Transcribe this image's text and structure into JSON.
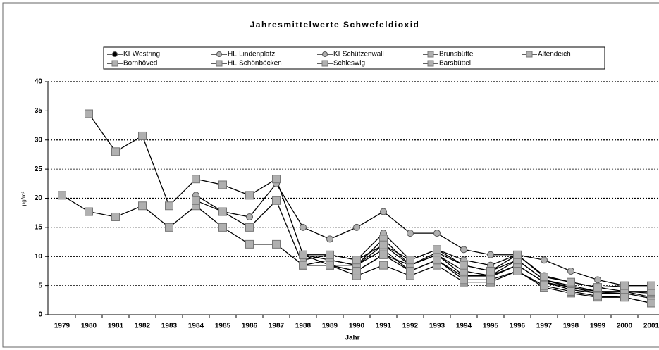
{
  "chart_data": {
    "type": "line",
    "title": "Jahresmittelwerte Schwefeldioxid",
    "x_label": "Jahr",
    "y_label": "µg/m³",
    "categories": [
      "1979",
      "1980",
      "1981",
      "1982",
      "1983",
      "1984",
      "1985",
      "1986",
      "1987",
      "1988",
      "1989",
      "1990",
      "1991",
      "1992",
      "1993",
      "1994",
      "1995",
      "1996",
      "1997",
      "1998",
      "1999",
      "2000",
      "2001"
    ],
    "ylim": [
      0,
      40
    ],
    "yticks": [
      0,
      5,
      10,
      15,
      20,
      25,
      30,
      35,
      40
    ],
    "grid": true,
    "legend": "top",
    "series": [
      {
        "name": "KI-Westring",
        "color": "#000000",
        "marker": "circle",
        "values": [
          null,
          null,
          null,
          null,
          null,
          null,
          null,
          null,
          null,
          10.3,
          9.4,
          8.5,
          12,
          8.5,
          10.7,
          8.5,
          7.5,
          9.4,
          6,
          5,
          4,
          4,
          4
        ]
      },
      {
        "name": "HL-Lindenplatz",
        "color": "#b0b0b0",
        "marker": "circle",
        "values": [
          null,
          null,
          null,
          null,
          null,
          20.5,
          17.7,
          16.8,
          22.5,
          15,
          13,
          15,
          17.7,
          14,
          14,
          11.2,
          10.3,
          10.3,
          9.4,
          7.5,
          6,
          5,
          5
        ]
      },
      {
        "name": "KI-Schützenwall",
        "color": "#b0b0b0",
        "marker": "circle",
        "values": [
          null,
          null,
          null,
          null,
          null,
          null,
          null,
          null,
          null,
          9.4,
          10.3,
          9.4,
          14,
          9.4,
          11.2,
          9.4,
          8.5,
          10.3,
          6.7,
          5.6,
          4.7,
          4,
          3
        ]
      },
      {
        "name": "Brunsbüttel",
        "color": "#b0b0b0",
        "marker": "square",
        "values": [
          20.5,
          17.7,
          16.8,
          18.7,
          15,
          18.7,
          15,
          12.1,
          12.1,
          8.5,
          8.5,
          6.7,
          8.5,
          6.7,
          8.5,
          5.6,
          5.6,
          7.5,
          4.7,
          3.7,
          3,
          3,
          2
        ]
      },
      {
        "name": "Altendeich",
        "color": "#b0b0b0",
        "marker": "square",
        "values": [
          null,
          34.5,
          28,
          30.7,
          18.7,
          23.3,
          22.3,
          20.5,
          23.3,
          10.3,
          8.5,
          7.5,
          10.3,
          8.5,
          10.3,
          6.7,
          6.7,
          8.5,
          5.6,
          4.7,
          3.7,
          3.7,
          2.8
        ]
      },
      {
        "name": "Bornhöved",
        "color": "#b0b0b0",
        "marker": "square",
        "values": [
          null,
          null,
          null,
          null,
          null,
          19.6,
          17.7,
          15,
          19.6,
          8.5,
          9.4,
          8.5,
          11.2,
          7.5,
          9.4,
          6.5,
          6.5,
          8.5,
          5.6,
          4.3,
          3.7,
          4,
          3.7
        ]
      },
      {
        "name": "HL-Schönböcken",
        "color": "#b0b0b0",
        "marker": "square",
        "values": [
          null,
          null,
          null,
          null,
          null,
          null,
          null,
          null,
          null,
          8.5,
          8.5,
          8.5,
          13,
          8.5,
          10.3,
          7.5,
          6.7,
          9.4,
          6,
          4.7,
          4,
          4,
          4
        ]
      },
      {
        "name": "Schleswig",
        "color": "#b0b0b0",
        "marker": "square",
        "values": [
          null,
          null,
          null,
          null,
          null,
          null,
          null,
          null,
          null,
          10.3,
          10.3,
          9.4,
          12,
          9.4,
          11.2,
          8.5,
          7.5,
          10.3,
          6.5,
          5.6,
          4.7,
          5,
          5
        ]
      },
      {
        "name": "Barsbüttel",
        "color": "#b0b0b0",
        "marker": "square",
        "values": [
          null,
          null,
          null,
          null,
          null,
          null,
          null,
          null,
          null,
          8.5,
          8.5,
          7.5,
          10.3,
          7.5,
          9.4,
          6,
          6,
          7.5,
          5,
          4,
          3.2,
          3,
          2
        ]
      }
    ]
  }
}
